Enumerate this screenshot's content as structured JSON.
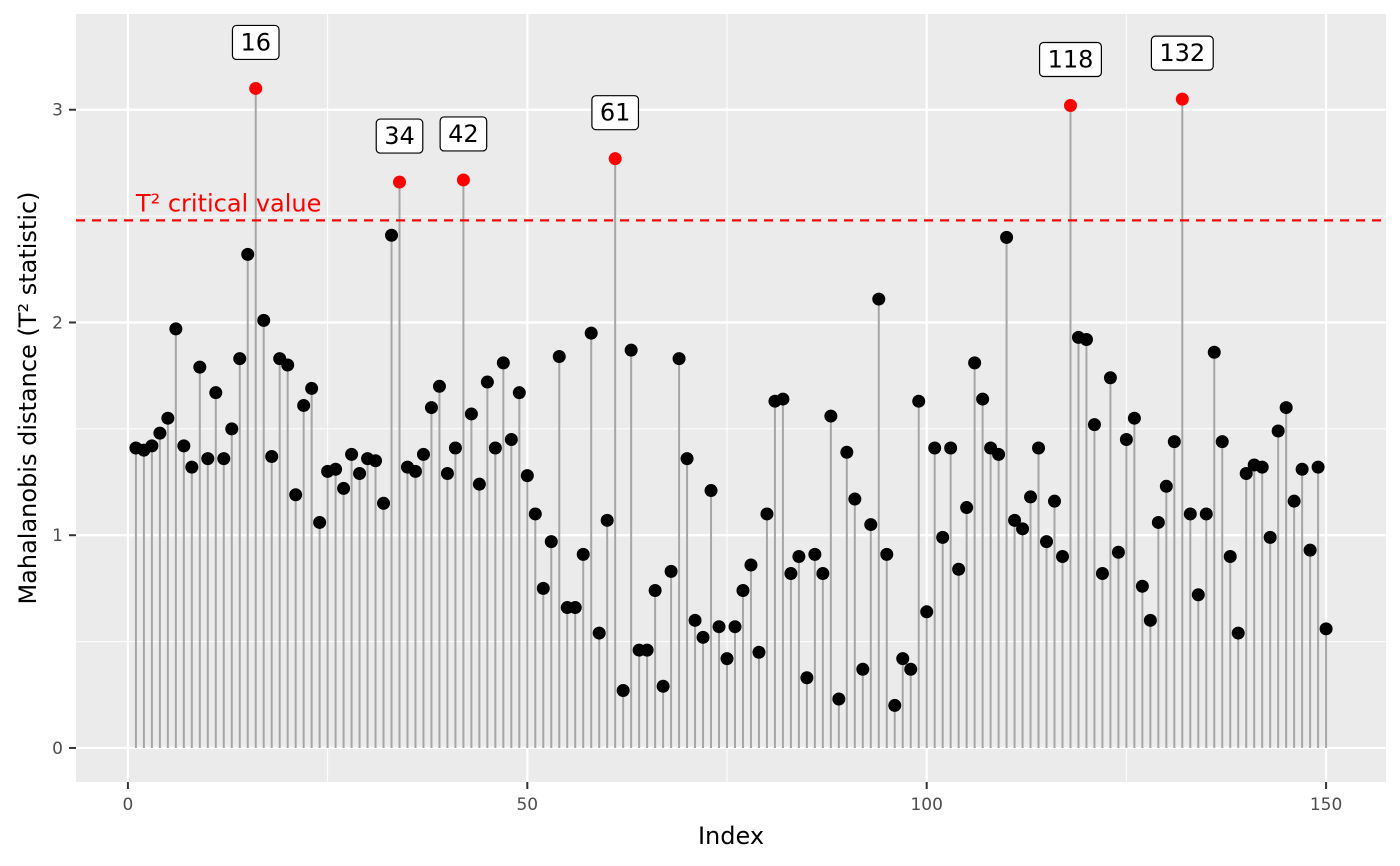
{
  "chart_data": {
    "type": "scatter",
    "style": "lollipop",
    "xlabel": "Index",
    "ylabel": "Mahalanobis distance (T² statistic)",
    "xlim": [
      -6.5,
      157.5
    ],
    "ylim": [
      -0.16,
      3.45
    ],
    "x_ticks": [
      0,
      50,
      100,
      150
    ],
    "y_ticks": [
      0,
      1,
      2,
      3
    ],
    "grid": true,
    "colors": {
      "panel": "#ebebeb",
      "grid": "#ffffff",
      "stem": "#a6a6a6",
      "point": "#000000",
      "outlier": "#ff0000",
      "reference_line": "#ff0000"
    },
    "reference_line": {
      "y": 2.48,
      "label": "T² critical value"
    },
    "series": [
      {
        "x": [
          1,
          2,
          3,
          4,
          5,
          6,
          7,
          8,
          9,
          10,
          11,
          12,
          13,
          14,
          15,
          16,
          17,
          18,
          19,
          20,
          21,
          22,
          23,
          24,
          25,
          26,
          27,
          28,
          29,
          30,
          31,
          32,
          33,
          34,
          35,
          36,
          37,
          38,
          39,
          40,
          41,
          42,
          43,
          44,
          45,
          46,
          47,
          48,
          49,
          50,
          51,
          52,
          53,
          54,
          55,
          56,
          57,
          58,
          59,
          60,
          61,
          62,
          63,
          64,
          65,
          66,
          67,
          68,
          69,
          70,
          71,
          72,
          73,
          74,
          75,
          76,
          77,
          78,
          79,
          80,
          81,
          82,
          83,
          84,
          85,
          86,
          87,
          88,
          89,
          90,
          91,
          92,
          93,
          94,
          95,
          96,
          97,
          98,
          99,
          100,
          101,
          102,
          103,
          104,
          105,
          106,
          107,
          108,
          109,
          110,
          111,
          112,
          113,
          114,
          115,
          116,
          117,
          118,
          119,
          120,
          121,
          122,
          123,
          124,
          125,
          126,
          127,
          128,
          129,
          130,
          131,
          132,
          133,
          134,
          135,
          136,
          137,
          138,
          139,
          140,
          141,
          142,
          143,
          144,
          145,
          146,
          147,
          148,
          149,
          150
        ],
        "values": [
          1.41,
          1.4,
          1.42,
          1.48,
          1.55,
          1.97,
          1.42,
          1.32,
          1.79,
          1.36,
          1.67,
          1.36,
          1.5,
          1.83,
          2.32,
          3.1,
          2.01,
          1.37,
          1.83,
          1.8,
          1.19,
          1.61,
          1.69,
          1.06,
          1.3,
          1.31,
          1.22,
          1.38,
          1.29,
          1.36,
          1.35,
          1.15,
          2.41,
          2.66,
          1.32,
          1.3,
          1.38,
          1.6,
          1.7,
          1.29,
          1.41,
          2.67,
          1.57,
          1.24,
          1.72,
          1.41,
          1.81,
          1.45,
          1.67,
          1.28,
          1.1,
          0.75,
          0.97,
          1.84,
          0.66,
          0.66,
          0.91,
          1.95,
          0.54,
          1.07,
          2.77,
          0.27,
          1.87,
          0.46,
          0.46,
          0.74,
          0.29,
          0.83,
          1.83,
          1.36,
          0.6,
          0.52,
          1.21,
          0.57,
          0.42,
          0.57,
          0.74,
          0.86,
          0.45,
          1.1,
          1.63,
          1.64,
          0.82,
          0.9,
          0.33,
          0.91,
          0.82,
          1.56,
          0.23,
          1.39,
          1.17,
          0.37,
          1.05,
          2.11,
          0.91,
          0.2,
          0.42,
          0.37,
          1.63,
          0.64,
          1.41,
          0.99,
          1.41,
          0.84,
          1.13,
          1.81,
          1.64,
          1.41,
          1.38,
          2.4,
          1.07,
          1.03,
          1.18,
          1.41,
          0.97,
          1.16,
          0.9,
          3.02,
          1.93,
          1.92,
          1.52,
          0.82,
          1.74,
          0.92,
          1.45,
          1.55,
          0.76,
          0.6,
          1.06,
          1.23,
          1.44,
          3.05,
          1.1,
          0.72,
          1.1,
          1.86,
          1.44,
          0.9,
          0.54,
          1.29,
          1.33,
          1.32,
          0.99,
          1.49,
          1.6,
          1.16,
          1.31,
          0.93,
          1.32,
          0.56
        ],
        "outliers": [
          16,
          34,
          42,
          61,
          118,
          132
        ]
      }
    ],
    "annotations": [
      {
        "x": 16,
        "text": "16"
      },
      {
        "x": 34,
        "text": "34"
      },
      {
        "x": 42,
        "text": "42"
      },
      {
        "x": 61,
        "text": "61"
      },
      {
        "x": 118,
        "text": "118"
      },
      {
        "x": 132,
        "text": "132"
      }
    ]
  }
}
